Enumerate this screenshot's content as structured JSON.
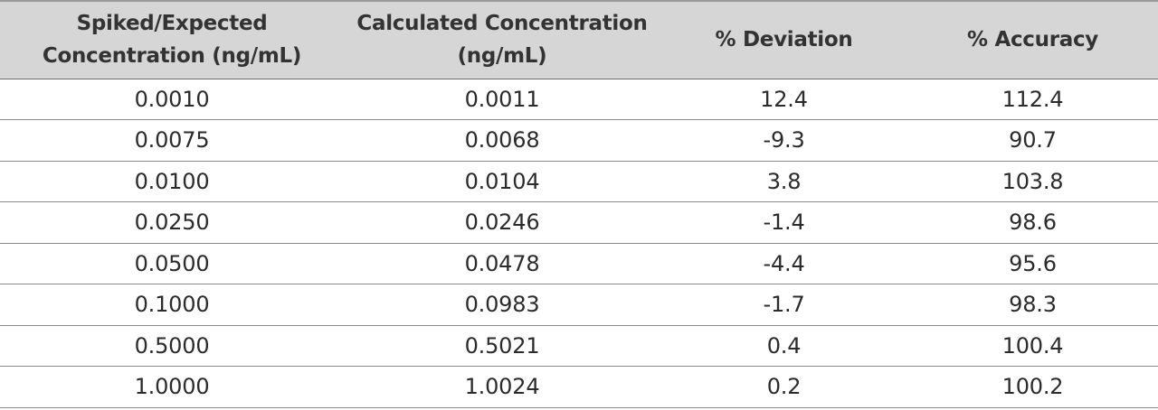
{
  "table": {
    "headers": [
      "Spiked/Expected Concentration (ng/mL)",
      "Calculated Concentration (ng/mL)",
      "% Deviation",
      "% Accuracy"
    ],
    "rows": [
      [
        "0.0010",
        "0.0011",
        "12.4",
        "112.4"
      ],
      [
        "0.0075",
        "0.0068",
        "-9.3",
        "90.7"
      ],
      [
        "0.0100",
        "0.0104",
        "3.8",
        "103.8"
      ],
      [
        "0.0250",
        "0.0246",
        "-1.4",
        "98.6"
      ],
      [
        "0.0500",
        "0.0478",
        "-4.4",
        "95.6"
      ],
      [
        "0.1000",
        "0.0983",
        "-1.7",
        "98.3"
      ],
      [
        "0.5000",
        "0.5021",
        "0.4",
        "100.4"
      ],
      [
        "1.0000",
        "1.0024",
        "0.2",
        "100.2"
      ]
    ]
  },
  "colors": {
    "header_background": "#d6d6d6",
    "rule": "#8a8a8a",
    "text": "#2b2b2b"
  }
}
